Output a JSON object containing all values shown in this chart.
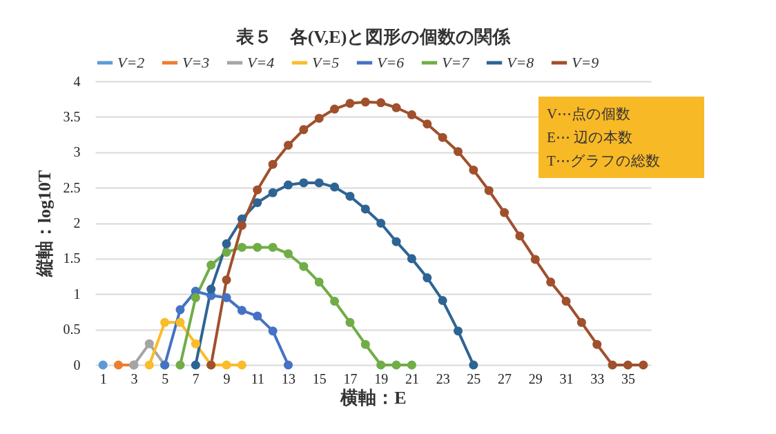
{
  "chart_data": {
    "type": "line",
    "title": "表５　各(V,E)と図形の個数の関係",
    "xlabel": "横軸：E",
    "ylabel": "縦軸：log10T",
    "annotations": [
      "V⋯点の個数",
      "E⋯ 辺の本数",
      "T⋯グラフの総数"
    ],
    "xlim": [
      0.5,
      36.5
    ],
    "xticks": [
      1,
      3,
      5,
      7,
      9,
      11,
      13,
      15,
      17,
      19,
      21,
      23,
      25,
      27,
      29,
      31,
      33,
      35
    ],
    "ylim": [
      0,
      4
    ],
    "yticks": [
      0,
      0.5,
      1,
      1.5,
      2,
      2.5,
      3,
      3.5,
      4
    ],
    "grid": "y",
    "legend": "top",
    "marker": "circle",
    "line_style": "solid",
    "series": [
      {
        "name": "V=2",
        "color": "#5b9bd5",
        "x": [
          1
        ],
        "values": [
          0
        ]
      },
      {
        "name": "V=3",
        "color": "#ed7d31",
        "x": [
          2,
          3
        ],
        "values": [
          0,
          0
        ]
      },
      {
        "name": "V=4",
        "color": "#a5a5a5",
        "x": [
          3,
          4,
          5
        ],
        "values": [
          0,
          0.3,
          0
        ]
      },
      {
        "name": "V=5",
        "color": "#fbbb2a",
        "x": [
          4,
          5,
          6,
          7,
          8,
          9,
          10
        ],
        "values": [
          0,
          0.6,
          0.6,
          0.3,
          0,
          0,
          0
        ]
      },
      {
        "name": "V=6",
        "color": "#4472c4",
        "x": [
          5,
          6,
          7,
          8,
          9,
          10,
          11,
          12,
          13
        ],
        "values": [
          0,
          0.78,
          1.04,
          0.98,
          0.95,
          0.77,
          0.69,
          0.48,
          0
        ]
      },
      {
        "name": "V=7",
        "color": "#70ad47",
        "x": [
          6,
          7,
          8,
          9,
          10,
          11,
          12,
          13,
          14,
          15,
          16,
          17,
          18,
          19,
          20,
          21
        ],
        "values": [
          0,
          0.95,
          1.41,
          1.59,
          1.66,
          1.66,
          1.66,
          1.57,
          1.39,
          1.17,
          0.9,
          0.6,
          0.29,
          0,
          0,
          0
        ]
      },
      {
        "name": "V=8",
        "color": "#2e6494",
        "x": [
          7,
          8,
          9,
          10,
          11,
          12,
          13,
          14,
          15,
          16,
          17,
          18,
          19,
          20,
          21,
          22,
          23,
          24,
          25
        ],
        "values": [
          0,
          1.07,
          1.71,
          2.06,
          2.29,
          2.43,
          2.54,
          2.57,
          2.57,
          2.51,
          2.38,
          2.2,
          2.0,
          1.74,
          1.5,
          1.23,
          0.91,
          0.48,
          0
        ]
      },
      {
        "name": "V=9",
        "color": "#a0502d",
        "x": [
          8,
          9,
          10,
          11,
          12,
          13,
          14,
          15,
          16,
          17,
          18,
          19,
          20,
          21,
          22,
          23,
          24,
          25,
          26,
          27,
          28,
          29,
          30,
          31,
          32,
          33,
          34,
          35,
          36
        ],
        "values": [
          0,
          1.2,
          1.97,
          2.47,
          2.83,
          3.1,
          3.32,
          3.48,
          3.61,
          3.69,
          3.71,
          3.7,
          3.63,
          3.53,
          3.4,
          3.21,
          3.01,
          2.75,
          2.46,
          2.15,
          1.82,
          1.49,
          1.17,
          0.9,
          0.6,
          0.29,
          0,
          0,
          0
        ]
      }
    ]
  }
}
